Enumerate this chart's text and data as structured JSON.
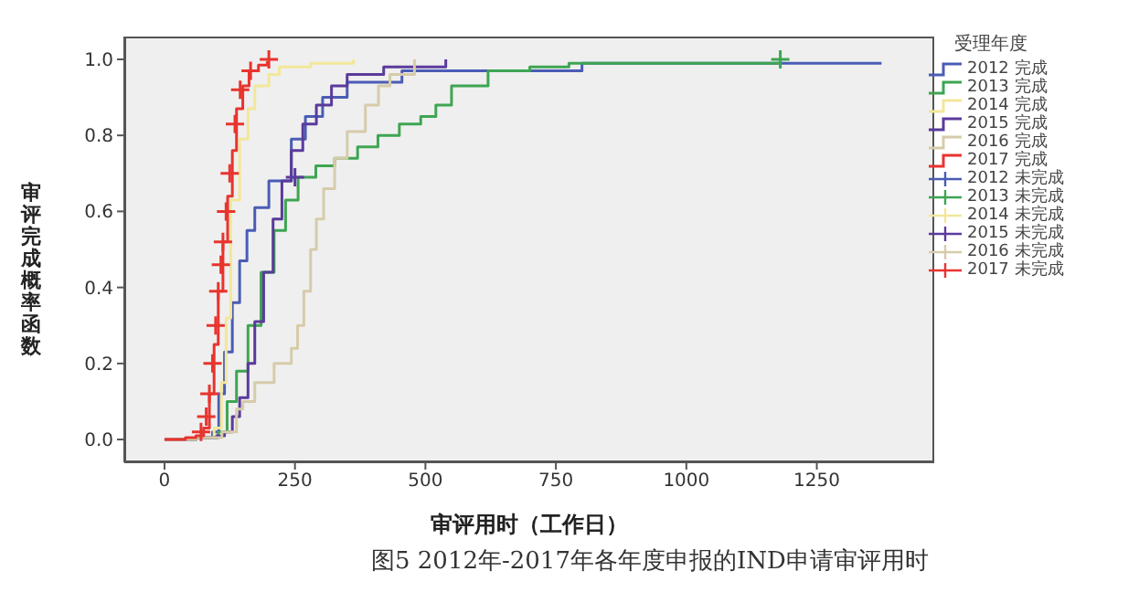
{
  "chart_data": {
    "type": "step",
    "xlabel": "审评用时（工作日）",
    "ylabel": "审评完成概率函数",
    "legend_title": "受理年度",
    "legend": "right",
    "grid": false,
    "xlim": [
      -77,
      1475
    ],
    "xticks": [
      0,
      250,
      500,
      750,
      1000,
      1250
    ],
    "ylim": [
      -0.06,
      1.06
    ],
    "yticks": [
      {
        "value": 0,
        "label": "0.0"
      },
      {
        "value": 0.2,
        "label": "0.2"
      },
      {
        "value": 0.4,
        "label": "0.4"
      },
      {
        "value": 0.6,
        "label": "0.6"
      },
      {
        "value": 0.8,
        "label": "0.8"
      },
      {
        "value": 1,
        "label": "1.0"
      }
    ],
    "annotations": [
      "图5 2012年-2017年各年度申报的IND申请审评用时"
    ],
    "series": [
      {
        "name": "2012 完成",
        "color": "#4a5cb5",
        "marker": "none",
        "x": [
          0,
          60,
          92,
          104,
          115,
          130,
          144,
          158,
          173,
          200,
          243,
          270,
          303,
          350,
          455,
          520,
          750,
          800,
          1374
        ],
        "values": [
          0,
          0.005,
          0.02,
          0.12,
          0.23,
          0.36,
          0.47,
          0.55,
          0.61,
          0.68,
          0.79,
          0.85,
          0.9,
          0.94,
          0.97,
          0.97,
          0.97,
          0.99,
          0.99
        ]
      },
      {
        "name": "2013 完成",
        "color": "#3ea552",
        "marker": "none",
        "x": [
          0,
          60,
          103,
          120,
          138,
          160,
          185,
          210,
          232,
          256,
          290,
          326,
          370,
          409,
          450,
          491,
          520,
          550,
          620,
          700,
          775,
          1180
        ],
        "values": [
          0,
          0.005,
          0.02,
          0.1,
          0.18,
          0.3,
          0.44,
          0.55,
          0.63,
          0.69,
          0.72,
          0.74,
          0.77,
          0.8,
          0.83,
          0.85,
          0.88,
          0.93,
          0.97,
          0.98,
          0.99,
          1
        ]
      },
      {
        "name": "2014 完成",
        "color": "#f3e79a",
        "marker": "none",
        "x": [
          0,
          60,
          95,
          109,
          118,
          127,
          144,
          160,
          173,
          200,
          220,
          280,
          362
        ],
        "values": [
          0,
          0.005,
          0.03,
          0.15,
          0.32,
          0.63,
          0.79,
          0.87,
          0.93,
          0.96,
          0.98,
          0.99,
          1
        ]
      },
      {
        "name": "2015 完成",
        "color": "#5b3a9c",
        "marker": "none",
        "x": [
          0,
          60,
          100,
          115,
          130,
          144,
          160,
          173,
          190,
          208,
          225,
          243,
          265,
          291,
          320,
          350,
          420,
          539
        ],
        "values": [
          0,
          0.005,
          0.01,
          0.02,
          0.06,
          0.11,
          0.2,
          0.31,
          0.44,
          0.58,
          0.68,
          0.76,
          0.83,
          0.88,
          0.93,
          0.96,
          0.98,
          1
        ]
      },
      {
        "name": "2016 完成",
        "color": "#d6ccaa",
        "marker": "none",
        "x": [
          0,
          60,
          110,
          138,
          150,
          173,
          210,
          243,
          255,
          267,
          280,
          291,
          305,
          326,
          350,
          385,
          410,
          432,
          479
        ],
        "values": [
          0,
          0.005,
          0.02,
          0.08,
          0.1,
          0.15,
          0.2,
          0.24,
          0.3,
          0.39,
          0.5,
          0.58,
          0.66,
          0.74,
          0.81,
          0.88,
          0.93,
          0.96,
          1
        ]
      },
      {
        "name": "2017 完成",
        "color": "#e8342e",
        "marker": "none",
        "x": [
          0,
          40,
          60,
          75,
          86,
          95,
          103,
          112,
          121,
          130,
          138,
          150,
          162,
          180,
          197
        ],
        "values": [
          0,
          0.005,
          0.01,
          0.03,
          0.12,
          0.25,
          0.39,
          0.52,
          0.64,
          0.76,
          0.87,
          0.93,
          0.97,
          0.985,
          0.995
        ]
      },
      {
        "type": "scatter",
        "name": "2012 未完成",
        "color": "#4a5cb5",
        "marker": "cross"
      },
      {
        "type": "scatter",
        "name": "2013 未完成",
        "color": "#3ea552",
        "marker": "cross",
        "x": [
          1180
        ],
        "values": [
          1
        ]
      },
      {
        "type": "scatter",
        "name": "2014 未完成",
        "color": "#f3e79a",
        "marker": "cross"
      },
      {
        "type": "scatter",
        "name": "2015 未完成",
        "color": "#5b3a9c",
        "marker": "cross",
        "x": [
          250
        ],
        "values": [
          0.69
        ]
      },
      {
        "type": "scatter",
        "name": "2016 未完成",
        "color": "#d6ccaa",
        "marker": "cross"
      },
      {
        "type": "scatter",
        "name": "2017 未完成",
        "color": "#e8342e",
        "marker": "cross",
        "x": [
          70,
          80,
          86,
          92,
          98,
          103,
          108,
          112,
          118,
          125,
          135,
          145,
          165,
          200
        ],
        "values": [
          0.02,
          0.06,
          0.12,
          0.2,
          0.3,
          0.39,
          0.46,
          0.52,
          0.6,
          0.7,
          0.83,
          0.92,
          0.97,
          1
        ]
      }
    ]
  }
}
